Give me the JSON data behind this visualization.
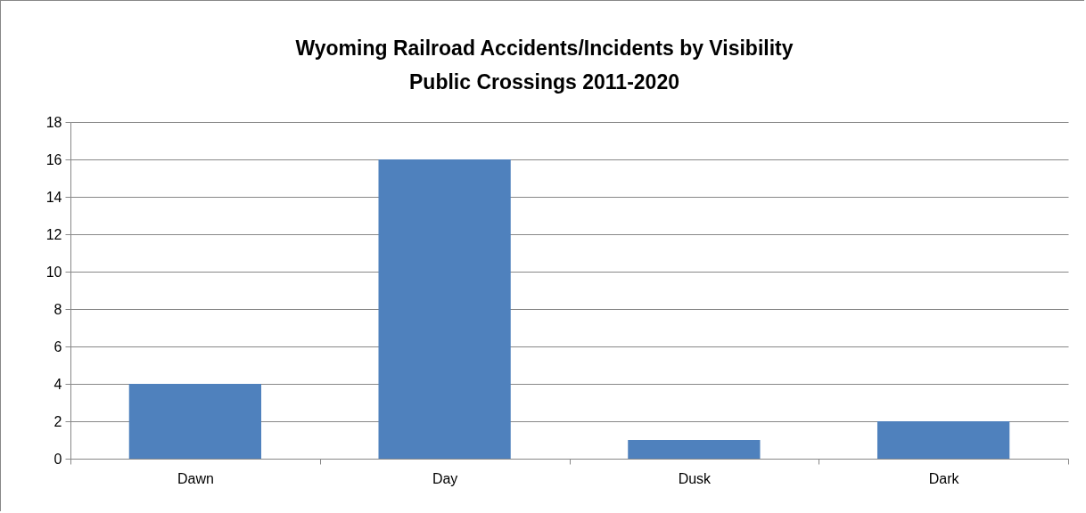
{
  "chart_data": {
    "type": "bar",
    "title": "Wyoming Railroad Accidents/Incidents by Visibility\nPublic Crossings 2011-2020",
    "categories": [
      "Dawn",
      "Day",
      "Dusk",
      "Dark"
    ],
    "values": [
      4,
      16,
      1,
      2
    ],
    "color": "#4f81bd",
    "ylim": [
      0,
      18
    ],
    "yticks": [
      0,
      2,
      4,
      6,
      8,
      10,
      12,
      14,
      16,
      18
    ],
    "grid": true
  }
}
